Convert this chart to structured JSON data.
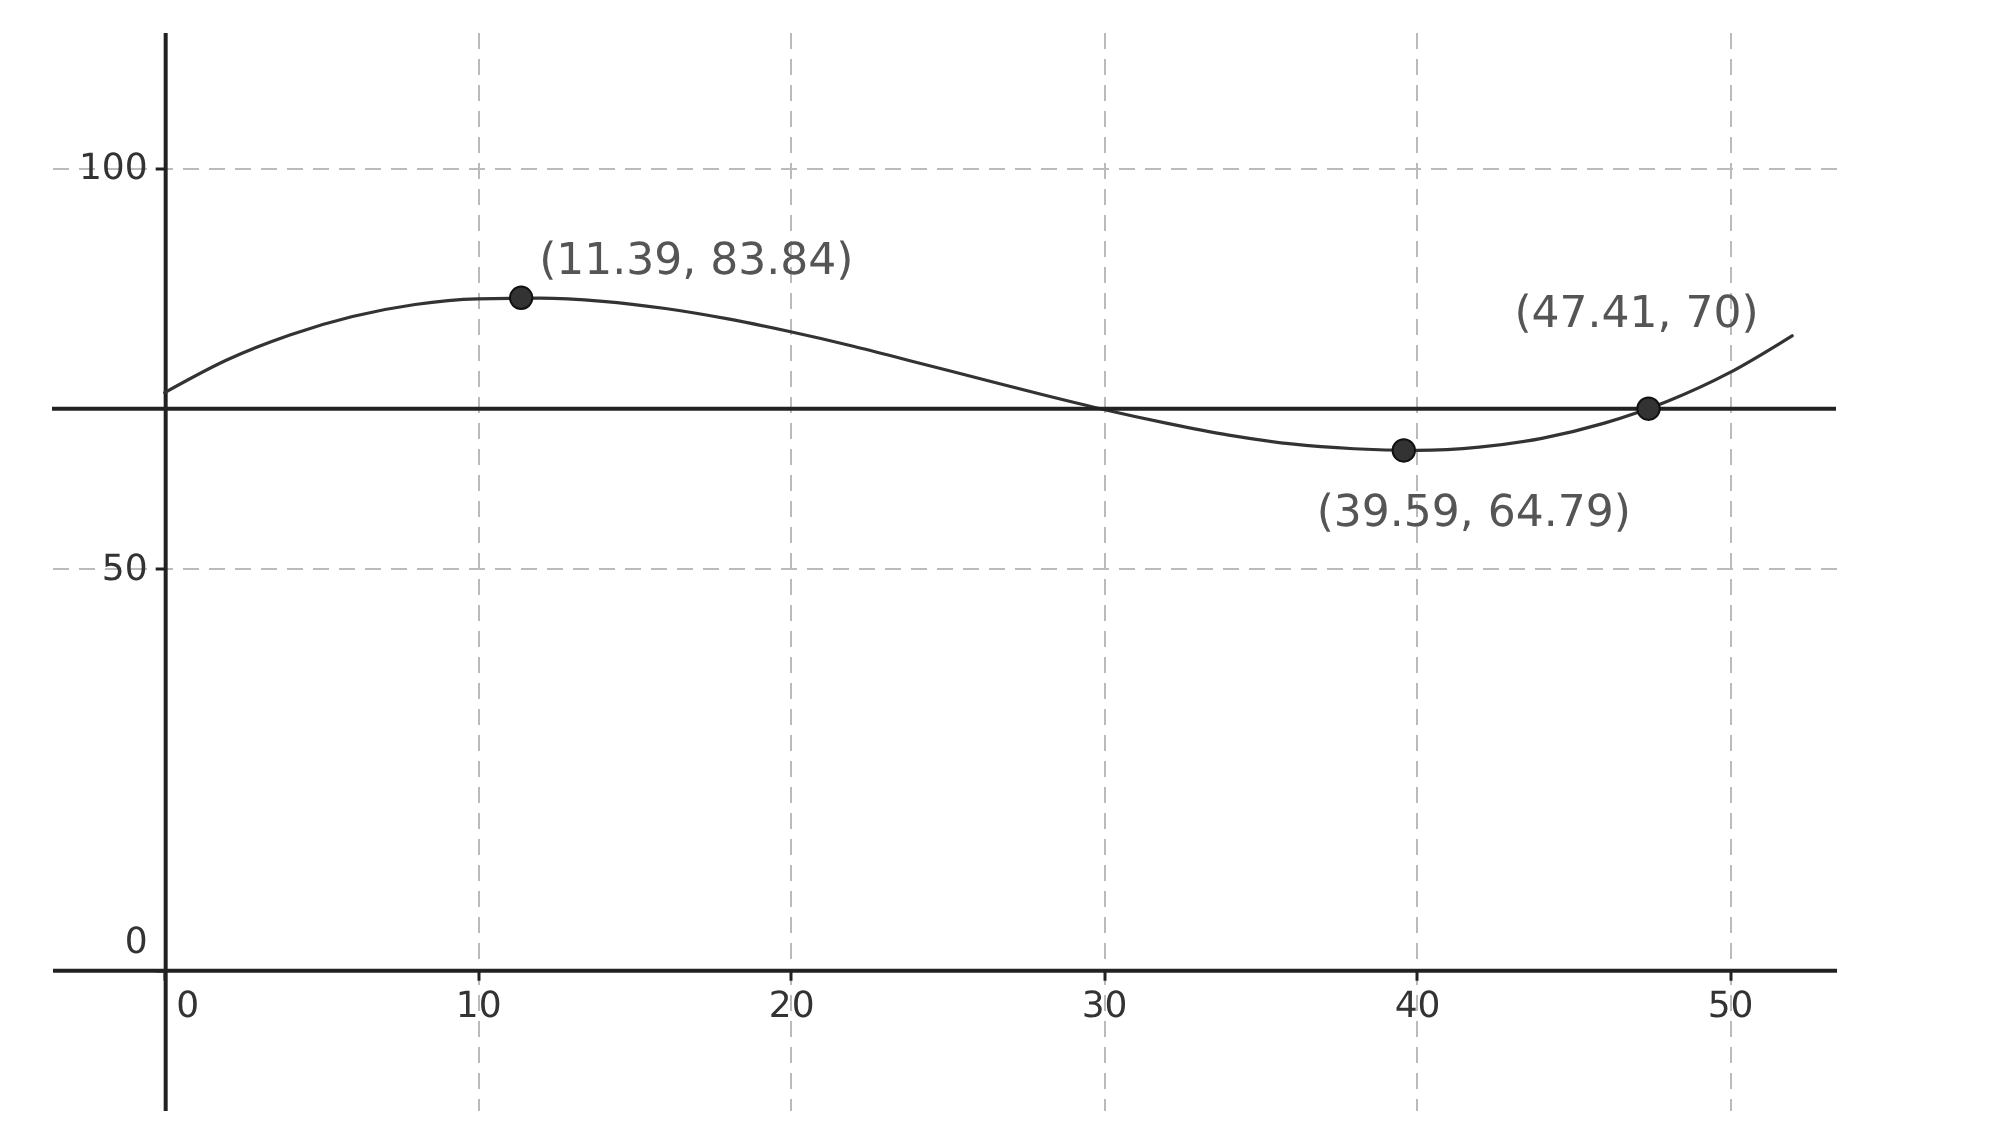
{
  "chart_data": {
    "type": "line",
    "series": [
      {
        "color": "#333333",
        "x": [
          0,
          2,
          4,
          6,
          8,
          10,
          12,
          14,
          16,
          18,
          20,
          22,
          24,
          26,
          28,
          30,
          32,
          34,
          36,
          38,
          40,
          42,
          44,
          46,
          48,
          50,
          52
        ],
        "values": [
          72,
          76.1,
          79.2,
          81.5,
          83.0,
          83.7,
          83.8,
          83.4,
          82.5,
          81.2,
          79.6,
          77.8,
          75.8,
          73.8,
          71.8,
          69.9,
          68.2,
          66.7,
          65.6,
          65.0,
          64.8,
          65.2,
          66.3,
          68.2,
          70.9,
          74.5,
          79.1
        ]
      },
      {
        "type": "scatter",
        "color": "#333333",
        "marker": "circle",
        "x": [
          11.39,
          39.59,
          47.41
        ],
        "values": [
          83.84,
          64.79,
          70
        ],
        "value_labels": [
          "(11.39, 83.84)",
          "(39.59, 64.79)",
          "(47.41, 70)"
        ]
      }
    ],
    "ref_lines": [
      {
        "axis": "y",
        "value": 70,
        "color": "#222222"
      }
    ],
    "xlim": [
      -3.6,
      53.4
    ],
    "ylim": [
      -17.5,
      117
    ],
    "xticks": [
      0,
      10,
      20,
      30,
      40,
      50
    ],
    "yticks": [
      0,
      50,
      100
    ],
    "grid": true
  }
}
